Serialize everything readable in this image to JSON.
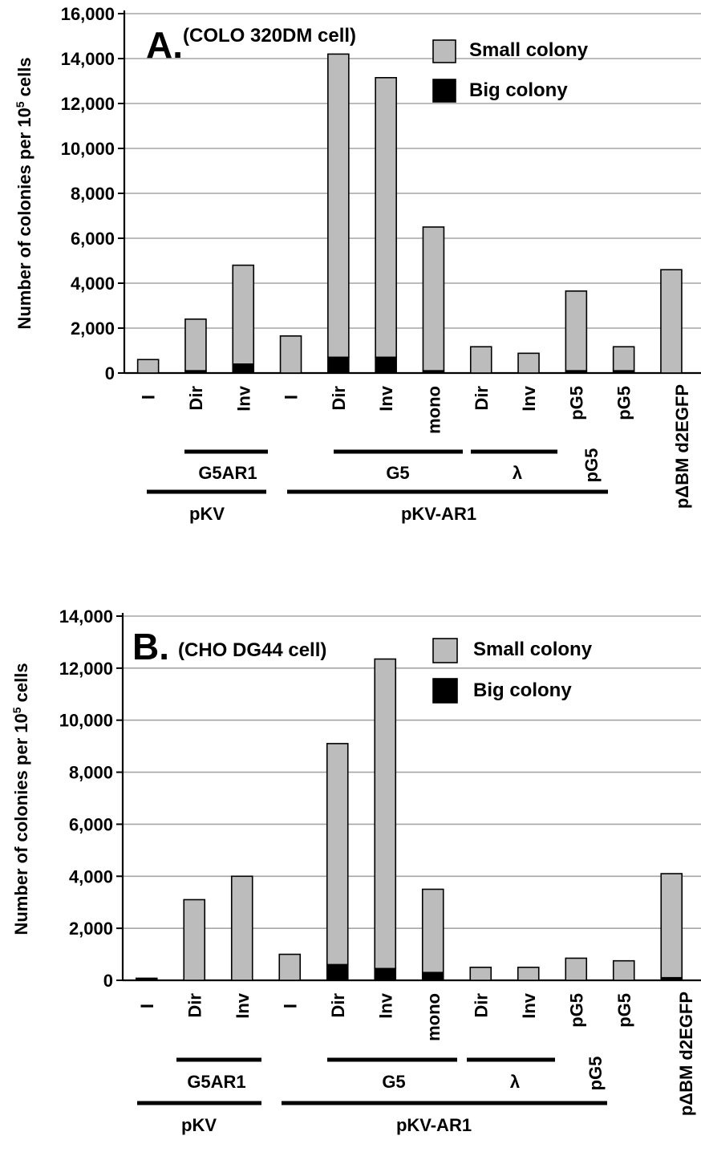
{
  "chart_data": [
    {
      "type": "bar",
      "stacked": true,
      "panel_letter": "A.",
      "title": "(COLO 320DM cell)",
      "ylabel_prefix": "Number of colonies per 10",
      "ylabel_exp": "5",
      "ylabel_suffix": " cells",
      "ylim": [
        0,
        16000
      ],
      "yticks": [
        "0",
        "2,000",
        "4,000",
        "6,000",
        "8,000",
        "10,000",
        "12,000",
        "14,000",
        "16,000"
      ],
      "grid": true,
      "legend_position": "top-right",
      "categories": [
        "I",
        "Dir",
        "Inv",
        "I",
        "Dir",
        "Inv",
        "mono",
        "Dir",
        "Inv",
        "pG5",
        "pG5",
        "pΔBM d2EGFP"
      ],
      "series": [
        {
          "name": "Big colony",
          "color": "#000000",
          "values": [
            0,
            100,
            400,
            0,
            700,
            700,
            100,
            0,
            0,
            100,
            100,
            0
          ]
        },
        {
          "name": "Small colony",
          "color": "#bcbcbc",
          "values": [
            600,
            2300,
            4400,
            1650,
            13500,
            12450,
            6400,
            1170,
            880,
            3550,
            1070,
            4600
          ]
        }
      ],
      "group_labels": {
        "row1": [
          "G5AR1",
          "G5",
          "λ",
          "pG5"
        ],
        "row2": [
          "pKV",
          "pKV-AR1"
        ]
      }
    },
    {
      "type": "bar",
      "stacked": true,
      "panel_letter": "B.",
      "title": "(CHO DG44 cell)",
      "ylabel_prefix": "Number of colonies per 10",
      "ylabel_exp": "5",
      "ylabel_suffix": " cells",
      "ylim": [
        0,
        14000
      ],
      "yticks": [
        "0",
        "2,000",
        "4,000",
        "6,000",
        "8,000",
        "10,000",
        "12,000",
        "14,000"
      ],
      "grid": true,
      "legend_position": "top-right",
      "categories": [
        "I",
        "Dir",
        "Inv",
        "I",
        "Dir",
        "Inv",
        "mono",
        "Dir",
        "Inv",
        "pG5",
        "pG5",
        "pΔBM d2EGFP"
      ],
      "series": [
        {
          "name": "Big colony",
          "color": "#000000",
          "values": [
            80,
            0,
            0,
            0,
            600,
            450,
            300,
            0,
            0,
            0,
            0,
            100
          ]
        },
        {
          "name": "Small colony",
          "color": "#bcbcbc",
          "values": [
            0,
            3100,
            4000,
            1000,
            8500,
            11900,
            3200,
            500,
            500,
            850,
            750,
            4000
          ]
        }
      ],
      "group_labels": {
        "row1": [
          "G5AR1",
          "G5",
          "λ",
          "pG5"
        ],
        "row2": [
          "pKV",
          "pKV-AR1"
        ]
      }
    }
  ]
}
